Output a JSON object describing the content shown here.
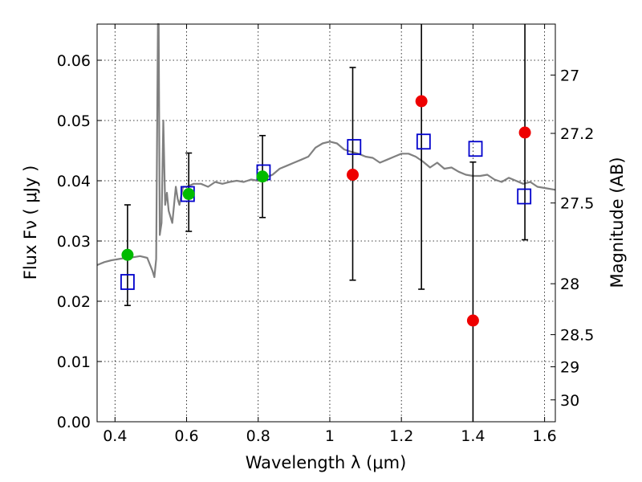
{
  "chart_data": {
    "type": "scatter",
    "xlabel": "Wavelength  λ (μm)",
    "ylabel": "Flux  Fν  ( μJy )",
    "y2label": "Magnitude (AB)",
    "xlim": [
      0.35,
      1.63
    ],
    "ylim": [
      0.0,
      0.066
    ],
    "grid": true,
    "x_ticks": [
      {
        "value": 0.4,
        "label": "0.4"
      },
      {
        "value": 0.6,
        "label": "0.6"
      },
      {
        "value": 0.8,
        "label": "0.8"
      },
      {
        "value": 1.0,
        "label": "1"
      },
      {
        "value": 1.2,
        "label": "1.2"
      },
      {
        "value": 1.4,
        "label": "1.4"
      },
      {
        "value": 1.6,
        "label": "1.6"
      }
    ],
    "y_ticks": [
      {
        "value": 0.0,
        "label": "0.00"
      },
      {
        "value": 0.01,
        "label": "0.01"
      },
      {
        "value": 0.02,
        "label": "0.02"
      },
      {
        "value": 0.03,
        "label": "0.03"
      },
      {
        "value": 0.04,
        "label": "0.04"
      },
      {
        "value": 0.05,
        "label": "0.05"
      },
      {
        "value": 0.06,
        "label": "0.06"
      }
    ],
    "y2_ticks": [
      {
        "value": 27,
        "label": "27"
      },
      {
        "value": 27.2,
        "label": "27.2"
      },
      {
        "value": 27.5,
        "label": "27.5"
      },
      {
        "value": 28,
        "label": "28"
      },
      {
        "value": 28.5,
        "label": "28.5"
      },
      {
        "value": 29,
        "label": "29"
      },
      {
        "value": 30,
        "label": "30"
      }
    ],
    "series": [
      {
        "marker": "line",
        "color": "#808080",
        "x": [
          0.35,
          0.37,
          0.39,
          0.41,
          0.43,
          0.45,
          0.47,
          0.49,
          0.505,
          0.51,
          0.515,
          0.52,
          0.522,
          0.525,
          0.53,
          0.535,
          0.54,
          0.545,
          0.55,
          0.56,
          0.57,
          0.575,
          0.58,
          0.59,
          0.6,
          0.62,
          0.64,
          0.66,
          0.68,
          0.7,
          0.72,
          0.74,
          0.76,
          0.78,
          0.8,
          0.82,
          0.84,
          0.86,
          0.88,
          0.9,
          0.92,
          0.94,
          0.96,
          0.98,
          1.0,
          1.02,
          1.04,
          1.06,
          1.08,
          1.1,
          1.12,
          1.14,
          1.16,
          1.18,
          1.2,
          1.22,
          1.24,
          1.26,
          1.28,
          1.3,
          1.32,
          1.34,
          1.36,
          1.38,
          1.4,
          1.42,
          1.44,
          1.46,
          1.48,
          1.5,
          1.52,
          1.54,
          1.56,
          1.58,
          1.6,
          1.63
        ],
        "y": [
          0.026,
          0.0265,
          0.0268,
          0.027,
          0.0272,
          0.0273,
          0.0275,
          0.0272,
          0.025,
          0.024,
          0.027,
          0.066,
          0.066,
          0.031,
          0.033,
          0.05,
          0.036,
          0.038,
          0.035,
          0.033,
          0.039,
          0.037,
          0.036,
          0.039,
          0.039,
          0.0395,
          0.0395,
          0.039,
          0.0398,
          0.0395,
          0.0398,
          0.04,
          0.0398,
          0.0402,
          0.04,
          0.0405,
          0.041,
          0.042,
          0.0425,
          0.043,
          0.0435,
          0.044,
          0.0455,
          0.0462,
          0.0465,
          0.0462,
          0.0452,
          0.0448,
          0.0445,
          0.044,
          0.0438,
          0.043,
          0.0435,
          0.044,
          0.0445,
          0.0445,
          0.044,
          0.0432,
          0.0422,
          0.043,
          0.042,
          0.0422,
          0.0415,
          0.041,
          0.0408,
          0.0408,
          0.041,
          0.0402,
          0.0398,
          0.0405,
          0.04,
          0.0395,
          0.0398,
          0.039,
          0.0388,
          0.0385
        ]
      },
      {
        "marker": "open-square",
        "color": "#0000cc",
        "x": [
          0.435,
          0.603,
          0.815,
          1.068,
          1.262,
          1.407,
          1.543
        ],
        "y": [
          0.0232,
          0.0378,
          0.0414,
          0.0456,
          0.0465,
          0.0453,
          0.0374
        ]
      },
      {
        "marker": "filled-circle",
        "color": "#00bb00",
        "x": [
          0.435,
          0.606,
          0.812
        ],
        "y": [
          0.0277,
          0.0378,
          0.0407
        ],
        "yerr_low": [
          0.0084,
          0.0062,
          0.0068
        ],
        "yerr_high": [
          0.0083,
          0.0068,
          0.0068
        ]
      },
      {
        "marker": "filled-circle",
        "color": "#ee0000",
        "x": [
          1.064,
          1.256,
          1.4,
          1.545
        ],
        "y": [
          0.041,
          0.0532,
          0.0168,
          0.048
        ],
        "yerr_low": [
          0.0175,
          0.0312,
          0.017,
          0.0178
        ],
        "yerr_high": [
          0.0178,
          0.015,
          0.0263,
          0.0185
        ]
      }
    ]
  }
}
